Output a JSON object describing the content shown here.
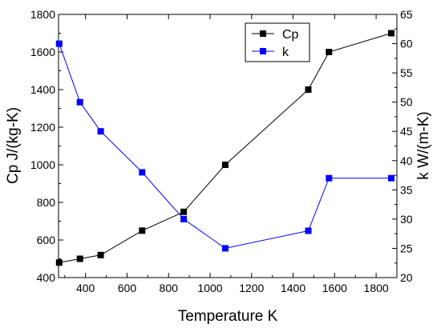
{
  "chart_data": {
    "type": "line",
    "xlabel": "Temperature K",
    "ylabel_left": "Cp J/(kg-K)",
    "ylabel_right": "k W/(m-K)",
    "xlim": [
      270,
      1900
    ],
    "ylim_left": [
      400,
      1800
    ],
    "ylim_right": [
      20,
      65
    ],
    "x_ticks": [
      400,
      600,
      800,
      1000,
      1200,
      1400,
      1600,
      1800
    ],
    "y_left_ticks": [
      400,
      600,
      800,
      1000,
      1200,
      1400,
      1600,
      1800
    ],
    "y_right_ticks": [
      20,
      25,
      30,
      35,
      40,
      45,
      50,
      55,
      60,
      65
    ],
    "grid": false,
    "legend_position": "top-center",
    "series": [
      {
        "name": "Cp",
        "axis": "left",
        "color": "#000000",
        "marker": "square",
        "x": [
          273,
          373,
          473,
          673,
          873,
          1073,
          1473,
          1573,
          1873
        ],
        "y": [
          480,
          500,
          520,
          650,
          750,
          1000,
          1400,
          1600,
          1700
        ]
      },
      {
        "name": "k",
        "axis": "right",
        "color": "#0000ff",
        "marker": "square",
        "x": [
          273,
          373,
          473,
          673,
          873,
          1073,
          1473,
          1573,
          1873
        ],
        "y": [
          60,
          50,
          45,
          38,
          30,
          25,
          28,
          37,
          37
        ]
      }
    ]
  }
}
